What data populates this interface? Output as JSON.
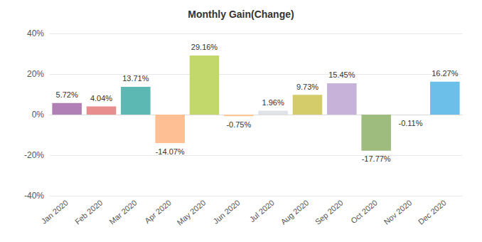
{
  "chart_data": {
    "type": "bar",
    "title": "Monthly Gain(Change)",
    "categories": [
      "Jan 2020",
      "Feb 2020",
      "Mar 2020",
      "Apr 2020",
      "May 2020",
      "Jun 2020",
      "Jul 2020",
      "Aug 2020",
      "Sep 2020",
      "Oct 2020",
      "Nov 2020",
      "Dec 2020"
    ],
    "values": [
      5.72,
      4.04,
      13.71,
      -14.07,
      29.16,
      -0.75,
      1.96,
      9.73,
      15.45,
      -17.77,
      -0.11,
      16.27
    ],
    "value_labels": [
      "5.72%",
      "4.04%",
      "13.71%",
      "-14.07%",
      "29.16%",
      "-0.75%",
      "1.96%",
      "9.73%",
      "15.45%",
      "-17.77%",
      "-0.11%",
      "16.27%"
    ],
    "colors": [
      "#b07fb5",
      "#e88e8e",
      "#5cb8b2",
      "#ffbf94",
      "#c2d86a",
      "#f9c896",
      "#dfe3e8",
      "#d4cc6a",
      "#c7b3d9",
      "#9ebc7d",
      "#c8c8c8",
      "#6bbfe8"
    ],
    "ylim": [
      -40,
      40
    ],
    "yticks": [
      {
        "value": -40,
        "label": "-40%"
      },
      {
        "value": -20,
        "label": "-20%"
      },
      {
        "value": 0,
        "label": "0%"
      },
      {
        "value": 20,
        "label": "20%"
      },
      {
        "value": 40,
        "label": "40%"
      }
    ],
    "grid": true,
    "data_labels": true
  }
}
